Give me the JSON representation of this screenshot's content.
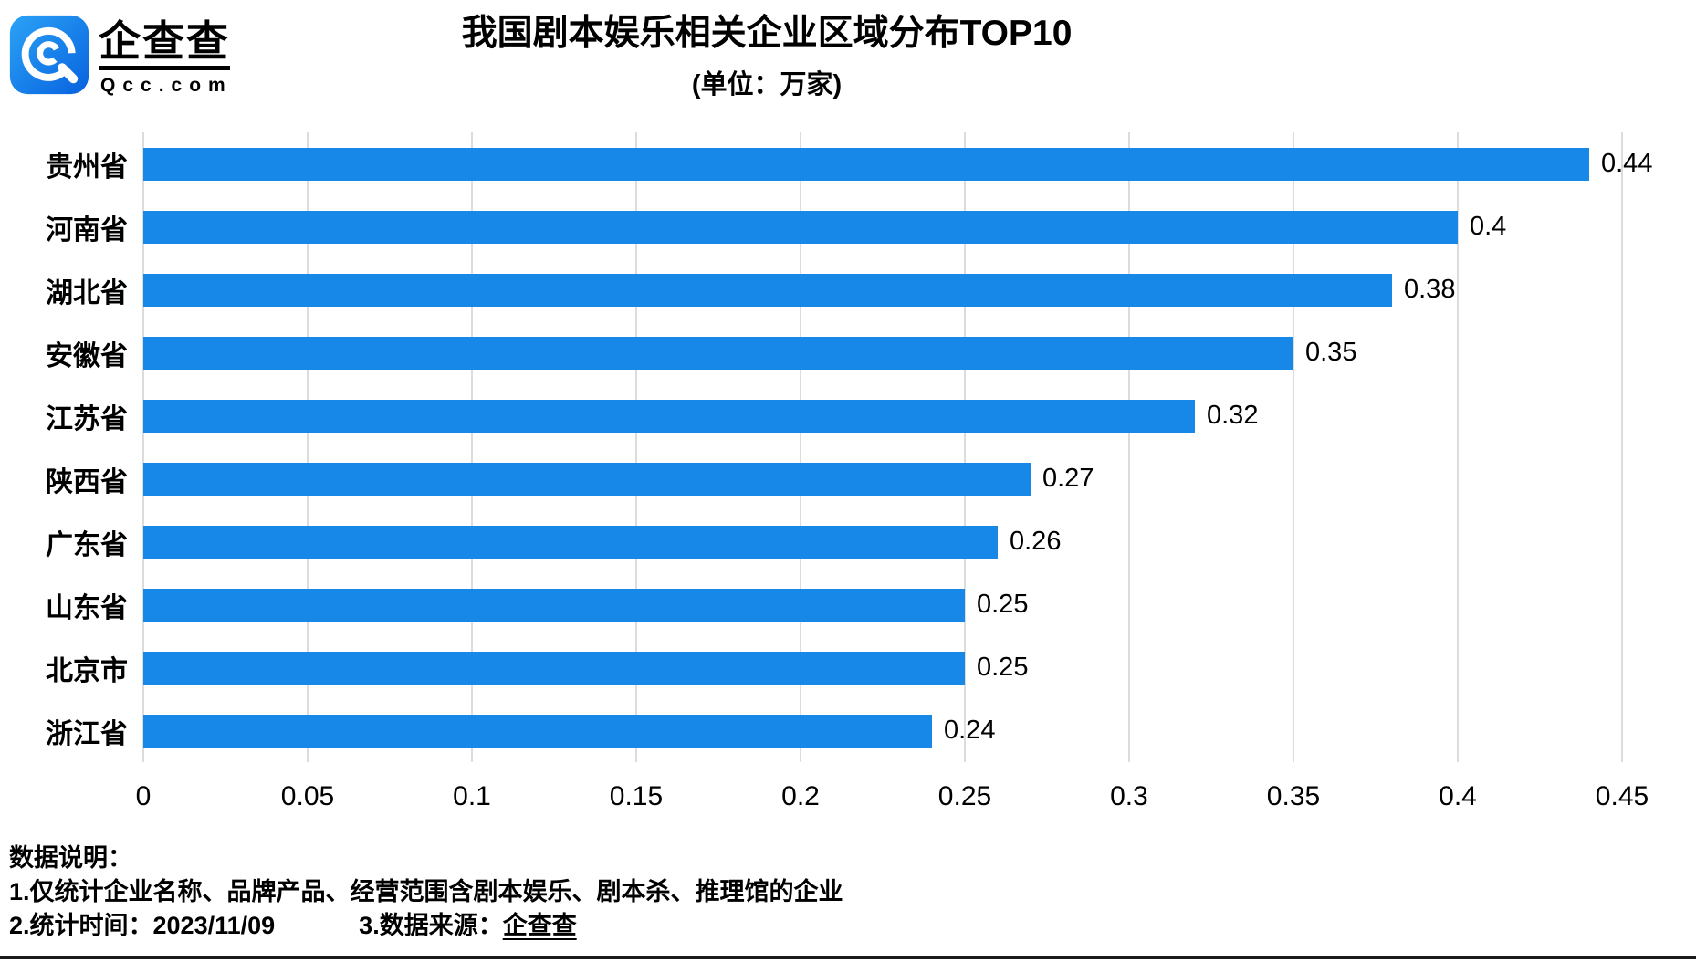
{
  "logo": {
    "brand": "企查查",
    "domain": "Qcc.com"
  },
  "header": {
    "title": "我国剧本娱乐相关企业区域分布TOP10",
    "subtitle": "(单位：万家)"
  },
  "chart_data": {
    "type": "bar",
    "orientation": "horizontal",
    "title": "我国剧本娱乐相关企业区域分布TOP10",
    "subtitle": "(单位：万家)",
    "categories": [
      "贵州省",
      "河南省",
      "湖北省",
      "安徽省",
      "江苏省",
      "陕西省",
      "广东省",
      "山东省",
      "北京市",
      "浙江省"
    ],
    "values": [
      0.44,
      0.4,
      0.38,
      0.35,
      0.32,
      0.27,
      0.26,
      0.25,
      0.25,
      0.24
    ],
    "value_labels": [
      "0.44",
      "0.4",
      "0.38",
      "0.35",
      "0.32",
      "0.27",
      "0.26",
      "0.25",
      "0.25",
      "0.24"
    ],
    "xlim": [
      0,
      0.45
    ],
    "x_ticks": [
      "0",
      "0.05",
      "0.1",
      "0.15",
      "0.2",
      "0.25",
      "0.3",
      "0.35",
      "0.4",
      "0.45"
    ],
    "grid": "vertical-only",
    "legend": "none",
    "bar_color": "#1787E8"
  },
  "colors": {
    "bar_blue": "#1787E8",
    "gridline_gray": "#DCDCDC",
    "logo_blue_light": "#2BA3F7",
    "logo_blue_dark": "#0862DE",
    "text_black": "#000000"
  },
  "footer": {
    "heading": "数据说明：",
    "line1": "1.仅统计企业名称、品牌产品、经营范围含剧本娱乐、剧本杀、推理馆的企业",
    "line2_left": "2.统计时间：2023/11/09",
    "line2_right_label": "3.数据来源：",
    "line2_right_source": "企查查"
  }
}
